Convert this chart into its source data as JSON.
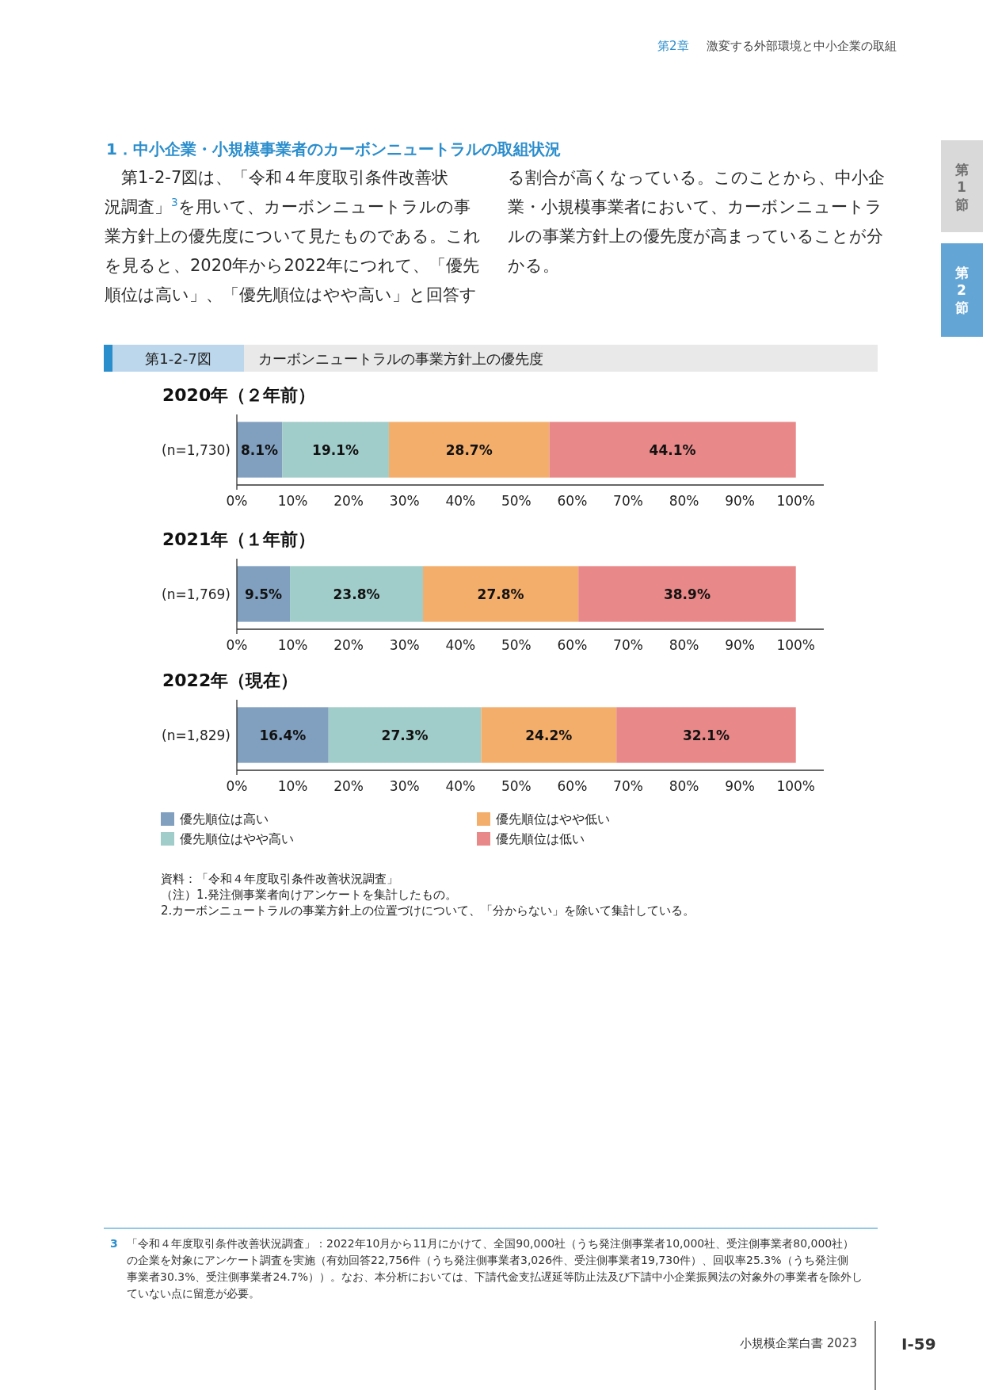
{
  "chart_data": [
    {
      "type": "bar",
      "orientation": "horizontal",
      "stacked": true,
      "title": "2020年（２年前）",
      "categories": [
        "(n=1,730)"
      ],
      "series": [
        {
          "color": "#81a0c0",
          "values": [
            8.1
          ],
          "value_labels": [
            "8.1%"
          ]
        },
        {
          "color": "#a0ccc9",
          "values": [
            19.1
          ],
          "value_labels": [
            "19.1%"
          ]
        },
        {
          "color": "#f4ae6b",
          "values": [
            28.7
          ],
          "value_labels": [
            "28.7%"
          ]
        },
        {
          "color": "#e88888",
          "values": [
            44.1
          ],
          "value_labels": [
            "44.1%"
          ]
        }
      ],
      "xlim": [
        0,
        105
      ],
      "xticks": [
        {
          "value": 0,
          "label": "0%"
        },
        {
          "value": 10,
          "label": "10%"
        },
        {
          "value": 20,
          "label": "20%"
        },
        {
          "value": 30,
          "label": "30%"
        },
        {
          "value": 40,
          "label": "40%"
        },
        {
          "value": 50,
          "label": "50%"
        },
        {
          "value": 60,
          "label": "60%"
        },
        {
          "value": 70,
          "label": "70%"
        },
        {
          "value": 80,
          "label": "80%"
        },
        {
          "value": 90,
          "label": "90%"
        },
        {
          "value": 100,
          "label": "100%"
        }
      ],
      "annotations": [
        "第2章",
        "激変する外部環境と中小企業の取組",
        "1．中小企業・小規模事業者のカーボンニュートラルの取組状況",
        "第1-2-7図は、「令和４年度取引条件改善状況調査」$^{3}$を用いて、カーボンニュートラルの事業方針上の優先度について見たものである。これを見ると、2020年から2022年につれて、「優先順位は高い」、「優先順位はやや高い」と回答する割合が高くなっている。このことから、中小企業・小規模事業者において、カーボンニュートラルの事業方針上の優先度が高まっていることが分かる。",
        "第1節",
        "第2節",
        "第1-2-7図",
        "カーボンニュートラルの事業方針上の優先度"
      ]
    },
    {
      "type": "bar",
      "orientation": "horizontal",
      "stacked": true,
      "title": "2021年（１年前）",
      "categories": [
        "(n=1,769)"
      ],
      "series": [
        {
          "color": "#81a0c0",
          "values": [
            9.5
          ],
          "value_labels": [
            "9.5%"
          ]
        },
        {
          "color": "#a0ccc9",
          "values": [
            23.8
          ],
          "value_labels": [
            "23.8%"
          ]
        },
        {
          "color": "#f4ae6b",
          "values": [
            27.8
          ],
          "value_labels": [
            "27.8%"
          ]
        },
        {
          "color": "#e88888",
          "values": [
            38.9
          ],
          "value_labels": [
            "38.9%"
          ]
        }
      ],
      "xlim": [
        0,
        105
      ],
      "xticks": [
        {
          "value": 0,
          "label": "0%"
        },
        {
          "value": 10,
          "label": "10%"
        },
        {
          "value": 20,
          "label": "20%"
        },
        {
          "value": 30,
          "label": "30%"
        },
        {
          "value": 40,
          "label": "40%"
        },
        {
          "value": 50,
          "label": "50%"
        },
        {
          "value": 60,
          "label": "60%"
        },
        {
          "value": 70,
          "label": "70%"
        },
        {
          "value": 80,
          "label": "80%"
        },
        {
          "value": 90,
          "label": "90%"
        },
        {
          "value": 100,
          "label": "100%"
        }
      ]
    },
    {
      "type": "bar",
      "orientation": "horizontal",
      "stacked": true,
      "title": "2022年（現在）",
      "categories": [
        "(n=1,829)"
      ],
      "series": [
        {
          "name": "優先順位は高い",
          "color": "#81a0c0",
          "values": [
            16.4
          ],
          "value_labels": [
            "16.4%"
          ]
        },
        {
          "name": "優先順位はやや高い",
          "color": "#a0ccc9",
          "values": [
            27.3
          ],
          "value_labels": [
            "27.3%"
          ]
        },
        {
          "name": "優先順位はやや低い",
          "color": "#f4ae6b",
          "values": [
            24.2
          ],
          "value_labels": [
            "24.2%"
          ]
        },
        {
          "name": "優先順位は低い",
          "color": "#e88888",
          "values": [
            32.1
          ],
          "value_labels": [
            "32.1%"
          ]
        }
      ],
      "xlim": [
        0,
        105
      ],
      "xticks": [
        {
          "value": 0,
          "label": "0%"
        },
        {
          "value": 10,
          "label": "10%"
        },
        {
          "value": 20,
          "label": "20%"
        },
        {
          "value": 30,
          "label": "30%"
        },
        {
          "value": 40,
          "label": "40%"
        },
        {
          "value": 50,
          "label": "50%"
        },
        {
          "value": 60,
          "label": "60%"
        },
        {
          "value": 70,
          "label": "70%"
        },
        {
          "value": 80,
          "label": "80%"
        },
        {
          "value": 90,
          "label": "90%"
        },
        {
          "value": 100,
          "label": "100%"
        }
      ],
      "legend": "bottom",
      "annotations": [
        "資料：「令和４年度取引条件改善状況調査」",
        "（注）1.発注側事業者向けアンケートを集計したもの。",
        "2.カーボンニュートラルの事業方針上の位置づけについて、「分からない」を除いて集計している。",
        "3",
        "「令和４年度取引条件改善状況調査」：2022年10月から11月にかけて、全国90,000社（うち発注側事業者10,000社、受注側事業者80,000社）の企業を対象にアンケート調査を実施（有効回答22,756件（うち発注側事業者3,026件、受注側事業者19,730件）、回収率25.3%（うち発注側事業者30.3%、受注側事業者24.7%））。なお、本分析においては、下請代金支払遅延等防止法及び下請中小企業振興法の対象外の事業者を除外していない点に留意が必要。",
        "小規模企業白書  2023",
        "Ⅰ-59"
      ]
    }
  ]
}
